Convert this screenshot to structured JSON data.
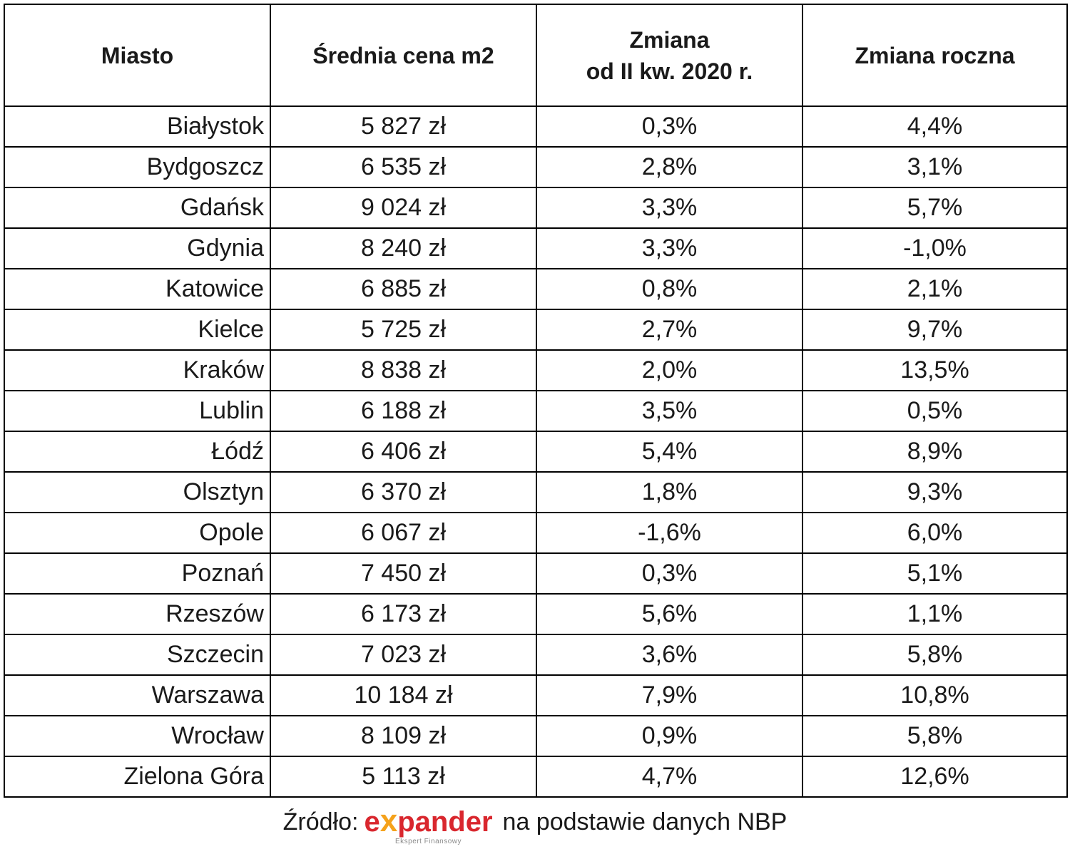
{
  "table": {
    "headers": {
      "city": "Miasto",
      "avg_price": "Średnia cena m2",
      "change_q_line1": "Zmiana",
      "change_q_line2": "od II kw. 2020 r.",
      "change_yoy": "Zmiana roczna"
    },
    "rows": [
      {
        "city": "Białystok",
        "price": "5 827 zł",
        "change_q": "0,3%",
        "change_yoy": "4,4%"
      },
      {
        "city": "Bydgoszcz",
        "price": "6 535 zł",
        "change_q": "2,8%",
        "change_yoy": "3,1%"
      },
      {
        "city": "Gdańsk",
        "price": "9 024 zł",
        "change_q": "3,3%",
        "change_yoy": "5,7%"
      },
      {
        "city": "Gdynia",
        "price": "8 240 zł",
        "change_q": "3,3%",
        "change_yoy": "-1,0%"
      },
      {
        "city": "Katowice",
        "price": "6 885 zł",
        "change_q": "0,8%",
        "change_yoy": "2,1%"
      },
      {
        "city": "Kielce",
        "price": "5 725 zł",
        "change_q": "2,7%",
        "change_yoy": "9,7%"
      },
      {
        "city": "Kraków",
        "price": "8 838 zł",
        "change_q": "2,0%",
        "change_yoy": "13,5%"
      },
      {
        "city": "Lublin",
        "price": "6 188 zł",
        "change_q": "3,5%",
        "change_yoy": "0,5%"
      },
      {
        "city": "Łódź",
        "price": "6 406 zł",
        "change_q": "5,4%",
        "change_yoy": "8,9%"
      },
      {
        "city": "Olsztyn",
        "price": "6 370 zł",
        "change_q": "1,8%",
        "change_yoy": "9,3%"
      },
      {
        "city": "Opole",
        "price": "6 067 zł",
        "change_q": "-1,6%",
        "change_yoy": "6,0%"
      },
      {
        "city": "Poznań",
        "price": "7 450 zł",
        "change_q": "0,3%",
        "change_yoy": "5,1%"
      },
      {
        "city": "Rzeszów",
        "price": "6 173 zł",
        "change_q": "5,6%",
        "change_yoy": "1,1%"
      },
      {
        "city": "Szczecin",
        "price": "7 023 zł",
        "change_q": "3,6%",
        "change_yoy": "5,8%"
      },
      {
        "city": "Warszawa",
        "price": "10 184 zł",
        "change_q": "7,9%",
        "change_yoy": "10,8%"
      },
      {
        "city": "Wrocław",
        "price": "8 109 zł",
        "change_q": "0,9%",
        "change_yoy": "5,8%"
      },
      {
        "city": "Zielona Góra",
        "price": "5 113 zł",
        "change_q": "4,7%",
        "change_yoy": "12,6%"
      }
    ]
  },
  "source": {
    "label": "Źródło:",
    "logo_text_before": "e",
    "logo_text_x": "x",
    "logo_text_after": "pander",
    "logo_tagline": "Ekspert Finansowy",
    "rest": "na podstawie danych NBP"
  },
  "colors": {
    "logo_red": "#d9272e",
    "logo_orange": "#f5a21b",
    "border": "#000000"
  }
}
